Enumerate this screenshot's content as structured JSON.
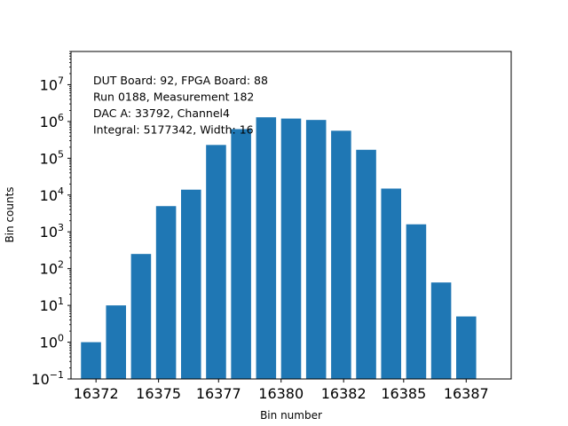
{
  "chart_data": {
    "type": "bar",
    "xlabel": "Bin number",
    "ylabel": "Bin counts",
    "yscale": "log",
    "ylim": [
      0.1,
      80000000
    ],
    "xlim": [
      16371.2,
      16388.8
    ],
    "grid": false,
    "bar_color": "#1f77b4",
    "x": [
      16372,
      16373,
      16374,
      16375,
      16376,
      16377,
      16378,
      16379,
      16380,
      16381,
      16382,
      16383,
      16384,
      16385,
      16386,
      16387
    ],
    "values": [
      1,
      10,
      250,
      5000,
      14000,
      230000,
      620000,
      1300000,
      1200000,
      1100000,
      560000,
      170000,
      15000,
      1600,
      42,
      5
    ],
    "x_ticks": [
      {
        "value": 16372.2,
        "label": "16372"
      },
      {
        "value": 16374.7,
        "label": "16375"
      },
      {
        "value": 16377.1,
        "label": "16377"
      },
      {
        "value": 16379.6,
        "label": "16380"
      },
      {
        "value": 16382.1,
        "label": "16382"
      },
      {
        "value": 16384.5,
        "label": "16385"
      },
      {
        "value": 16387.0,
        "label": "16387"
      }
    ],
    "y_ticks": [
      {
        "value": 0.1,
        "base": "10",
        "exp": "−1"
      },
      {
        "value": 1,
        "base": "10",
        "exp": "0"
      },
      {
        "value": 10,
        "base": "10",
        "exp": "1"
      },
      {
        "value": 100,
        "base": "10",
        "exp": "2"
      },
      {
        "value": 1000,
        "base": "10",
        "exp": "3"
      },
      {
        "value": 10000,
        "base": "10",
        "exp": "4"
      },
      {
        "value": 100000,
        "base": "10",
        "exp": "5"
      },
      {
        "value": 1000000,
        "base": "10",
        "exp": "6"
      },
      {
        "value": 10000000,
        "base": "10",
        "exp": "7"
      }
    ],
    "annotations": [
      "DUT Board: 92, FPGA Board: 88",
      "Run 0188, Measurement 182",
      "DAC A: 33792, Channel4",
      "Integral: 5177342, Width: 16"
    ]
  }
}
